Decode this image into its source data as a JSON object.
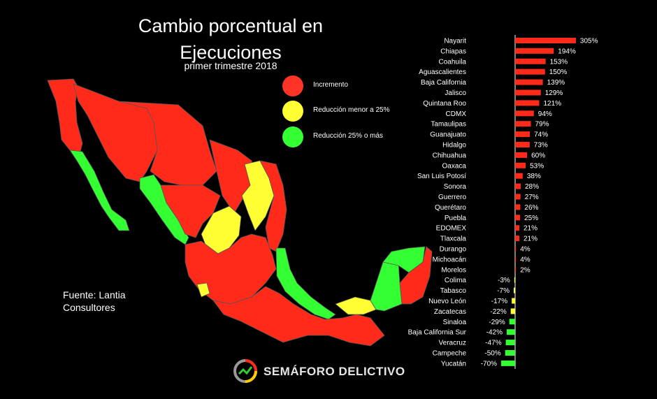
{
  "header": {
    "title_line1": "Cambio porcentual en",
    "title_line2": "Ejecuciones",
    "subtitle": "primer trimestre 2018"
  },
  "legend": [
    {
      "label": "Incremento",
      "color": "#ff3326"
    },
    {
      "label": "Reducción menor a 25%",
      "color": "#ffff33"
    },
    {
      "label": "Reducción 25% o más",
      "color": "#33ff33"
    }
  ],
  "source": {
    "line1": "Fuente: Lantia",
    "line2": "Consultores"
  },
  "brand": {
    "name": "SEMÁFORO DELICTIVO"
  },
  "colors": {
    "increase": "#ff2a1a",
    "small_reduction": "#ffff33",
    "large_reduction": "#33ff33",
    "background": "#000000"
  },
  "chart_data": {
    "type": "bar",
    "orientation": "horizontal",
    "categories": [
      "Nayarit",
      "Chiapas",
      "Coahuila",
      "Aguascalientes",
      "Baja California",
      "Jalisco",
      "Quintana Roo",
      "CDMX",
      "Tamaulipas",
      "Guanajuato",
      "Hidalgo",
      "Chihuahua",
      "Oaxaca",
      "San Luis Potosí",
      "Sonora",
      "Guerrero",
      "Querétaro",
      "Puebla",
      "EDOMEX",
      "Tlaxcala",
      "Durango",
      "Michoacán",
      "Morelos",
      "Colima",
      "Tabasco",
      "Nuevo León",
      "Zacatecas",
      "Sinaloa",
      "Baja California Sur",
      "Veracruz",
      "Campeche",
      "Yucatán"
    ],
    "values": [
      305,
      194,
      153,
      150,
      139,
      129,
      121,
      94,
      79,
      74,
      73,
      60,
      53,
      38,
      28,
      27,
      26,
      25,
      21,
      21,
      4,
      4,
      2,
      -3,
      -7,
      -17,
      -22,
      -29,
      -42,
      -47,
      -50,
      -70
    ],
    "value_labels": [
      "305%",
      "194%",
      "153%",
      "150%",
      "139%",
      "129%",
      "121%",
      "94%",
      "79%",
      "74%",
      "73%",
      "60%",
      "53%",
      "38%",
      "28%",
      "27%",
      "26%",
      "25%",
      "21%",
      "21%",
      "4%",
      "4%",
      "2%",
      "-3%",
      "-7%",
      "-17%",
      "-22%",
      "-29%",
      "-42%",
      "-47%",
      "-50%",
      "-70%"
    ],
    "grid": false
  }
}
